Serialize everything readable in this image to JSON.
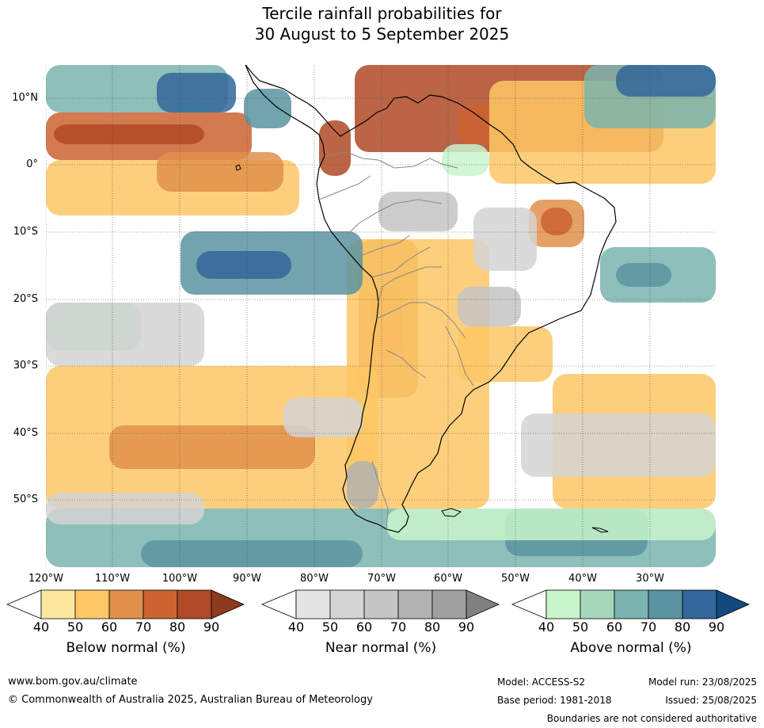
{
  "title": {
    "line1": "Tercile rainfall probabilities for",
    "line2": "30 August to 5 September 2025"
  },
  "map": {
    "lat_labels": [
      "10°N",
      "0°",
      "10°S",
      "20°S",
      "30°S",
      "40°S",
      "50°S"
    ],
    "lon_labels": [
      "120°W",
      "110°W",
      "100°W",
      "90°W",
      "80°W",
      "70°W",
      "60°W",
      "50°W",
      "40°W",
      "30°W"
    ],
    "colors": {
      "below": [
        "#fde8a0",
        "#fdc765",
        "#e0904a",
        "#cc6331",
        "#b04a26",
        "#8e3a1c"
      ],
      "near": [
        "#e4e4e4",
        "#d4d4d4",
        "#c4c4c4",
        "#b2b2b2",
        "#a0a0a0",
        "#808080"
      ],
      "above": [
        "#c8f5cc",
        "#a6d7ba",
        "#7ab4ae",
        "#5a94a0",
        "#336699",
        "#124a7d"
      ]
    }
  },
  "colorbars": [
    {
      "label": "Below normal (%)",
      "ticks": [
        "40",
        "50",
        "60",
        "70",
        "80",
        "90"
      ]
    },
    {
      "label": "Near normal (%)",
      "ticks": [
        "40",
        "50",
        "60",
        "70",
        "80",
        "90"
      ]
    },
    {
      "label": "Above normal (%)",
      "ticks": [
        "40",
        "50",
        "60",
        "70",
        "80",
        "90"
      ]
    }
  ],
  "footer": {
    "website": "www.bom.gov.au/climate",
    "copyright": "© Commonwealth of Australia 2025, Australian Bureau of Meteorology",
    "model": "Model: ACCESS-S2",
    "base_period": "Base period: 1981-2018",
    "model_run": "Model run: 23/08/2025",
    "issued": "Issued: 25/08/2025",
    "disclaimer": "Boundaries are not considered authoritative"
  }
}
